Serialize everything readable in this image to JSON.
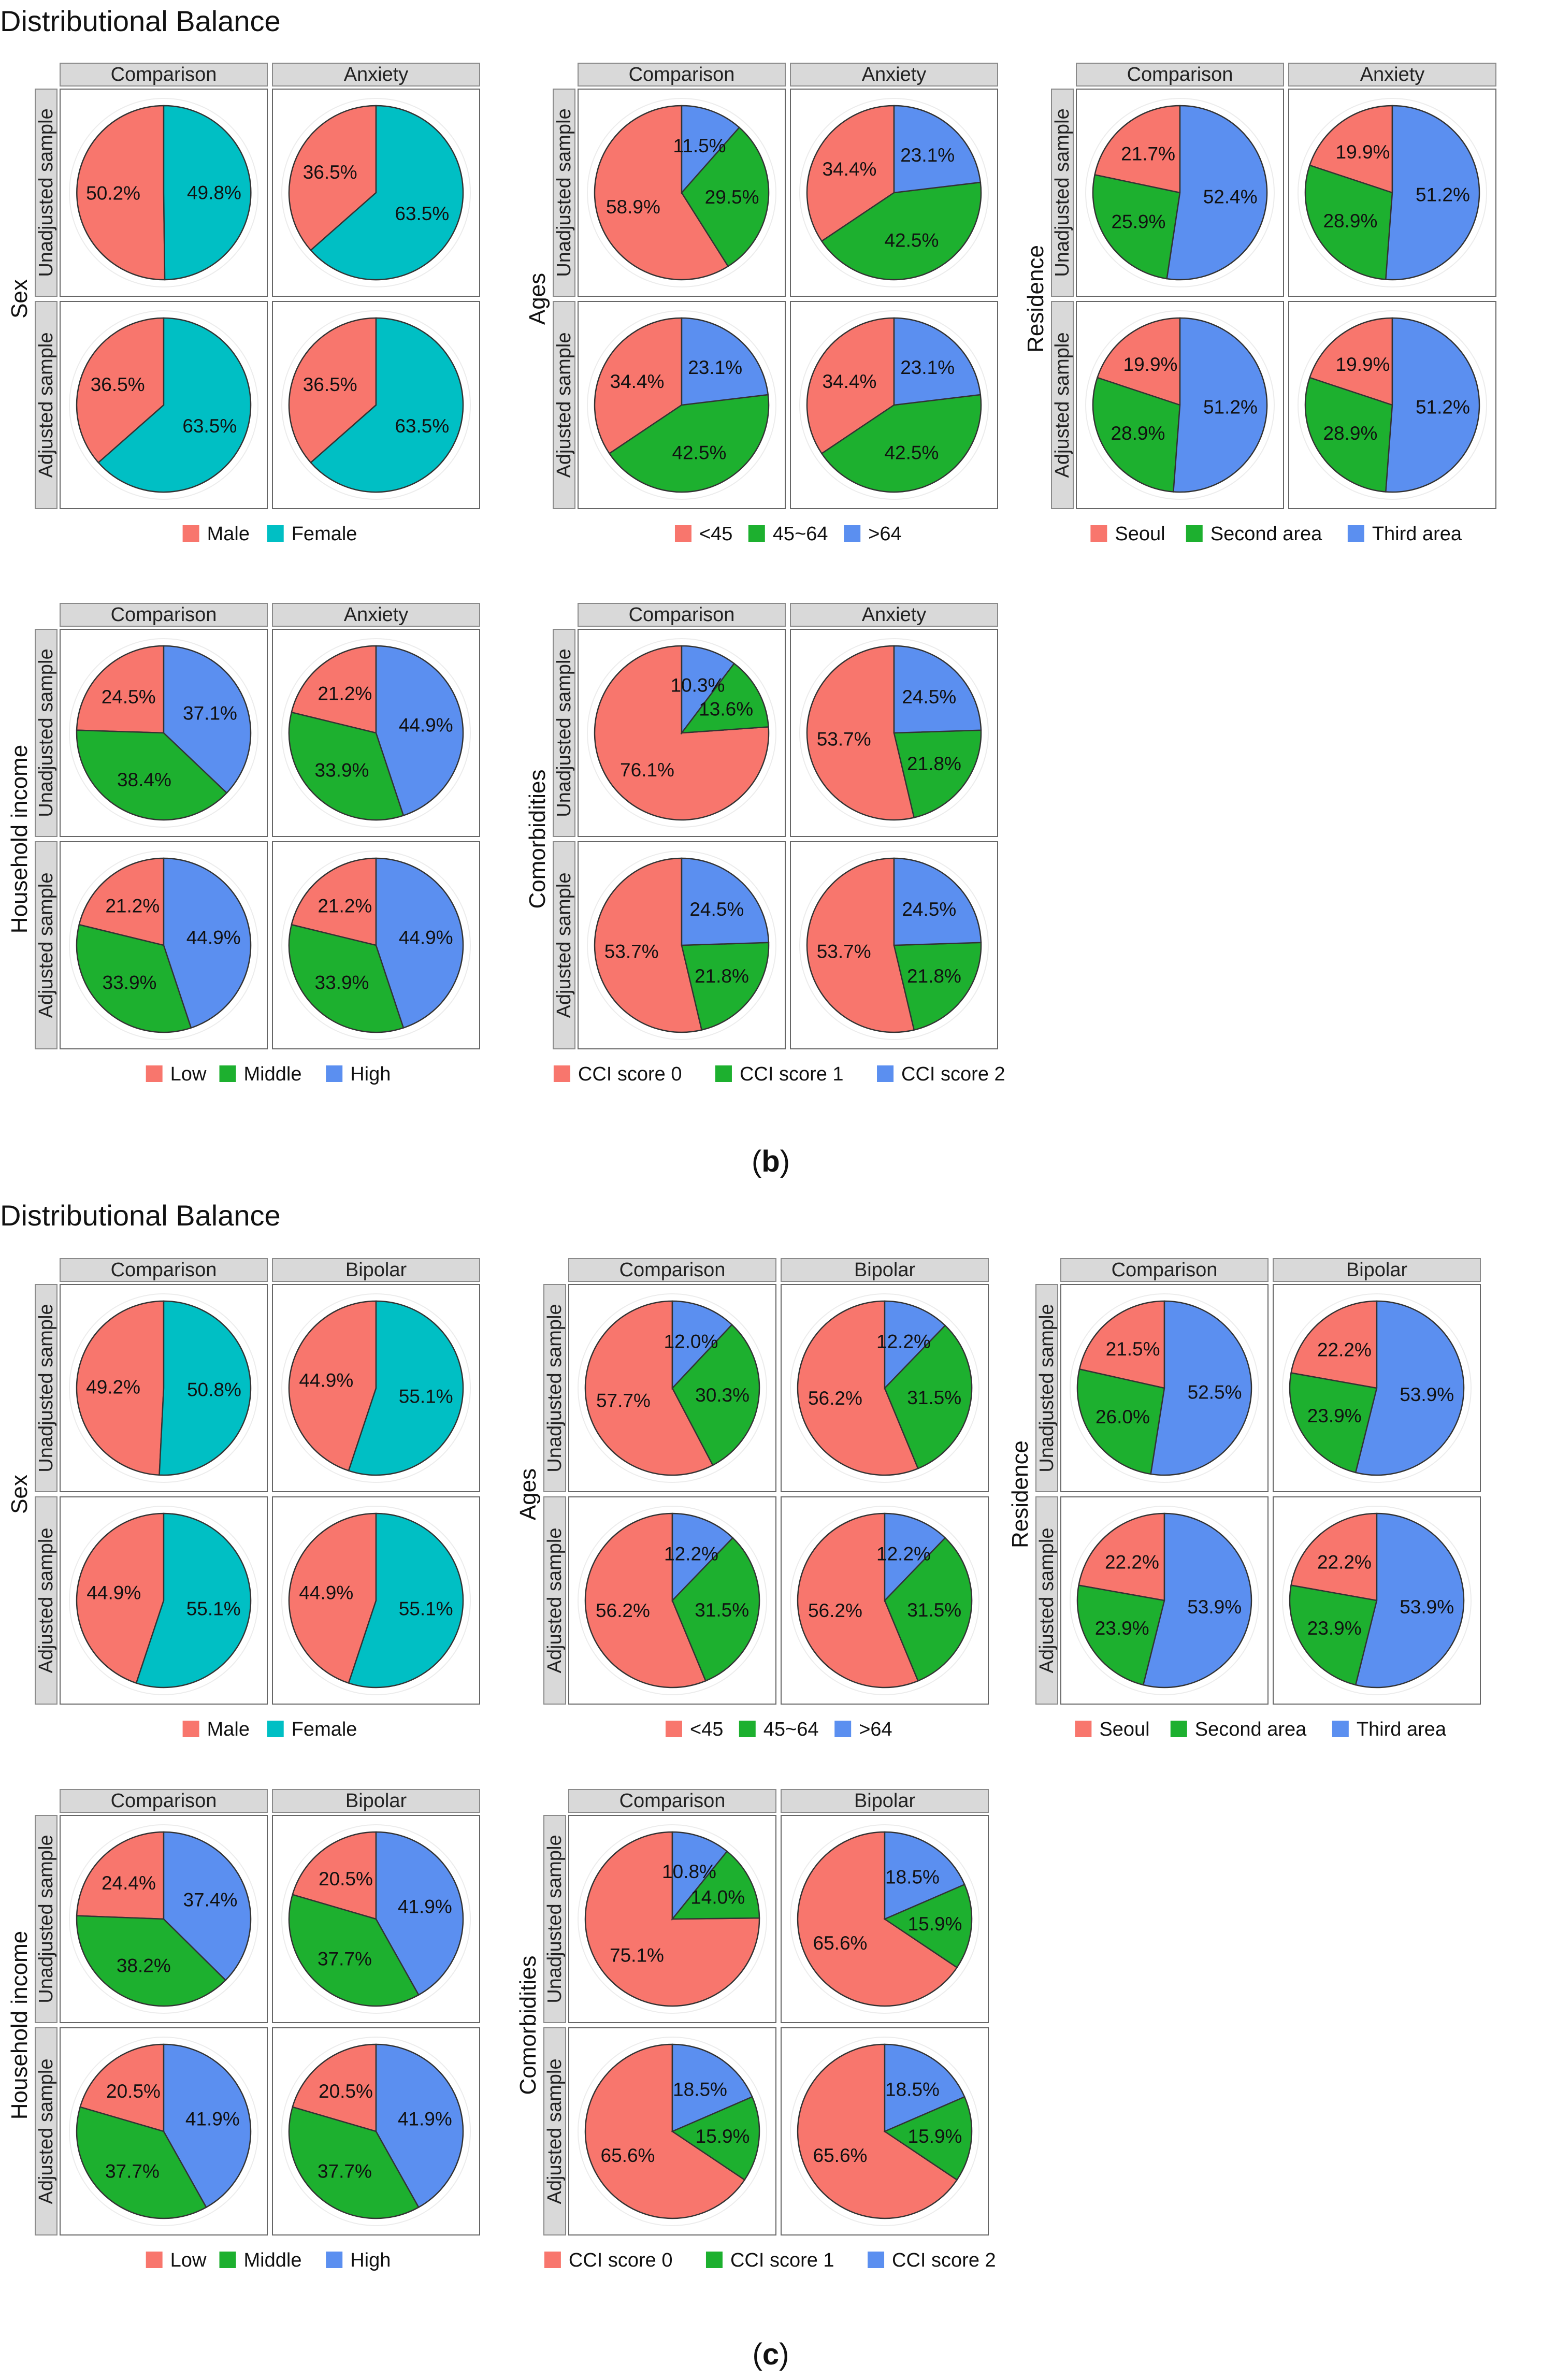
{
  "colors": {
    "red": "#F8766D",
    "green": "#1DB02F",
    "blue": "#5B8FF0",
    "teal": "#00BFC4",
    "strip_bg": "#D9D9D9",
    "strip_border": "#8A8A8A",
    "panel_border": "#666666",
    "outline": "#333333"
  },
  "figure": {
    "b": {
      "title": "Distributional Balance",
      "caption_open": "(",
      "caption_letter": "b",
      "caption_close": ")"
    },
    "c": {
      "title": "Distributional Balance",
      "caption_open": "(",
      "caption_letter": "c",
      "caption_close": ")"
    }
  },
  "chart_data": [
    {
      "type": "pie",
      "figure": "b",
      "variable": "Sex",
      "columns": [
        "Comparison",
        "Anxiety"
      ],
      "rows": [
        "Unadjusted sample",
        "Adjusted sample"
      ],
      "categories": [
        "Male",
        "Female"
      ],
      "colors": [
        "#F8766D",
        "#00BFC4"
      ],
      "values": [
        [
          [
            50.2,
            49.8
          ],
          [
            36.5,
            63.5
          ]
        ],
        [
          [
            36.5,
            63.5
          ],
          [
            36.5,
            63.5
          ]
        ]
      ]
    },
    {
      "type": "pie",
      "figure": "b",
      "variable": "Ages",
      "columns": [
        "Comparison",
        "Anxiety"
      ],
      "rows": [
        "Unadjusted sample",
        "Adjusted sample"
      ],
      "categories": [
        "<45",
        "45~64",
        ">64"
      ],
      "colors": [
        "#F8766D",
        "#1DB02F",
        "#5B8FF0"
      ],
      "values": [
        [
          [
            58.9,
            29.5,
            11.5
          ],
          [
            34.4,
            42.5,
            23.1
          ]
        ],
        [
          [
            34.4,
            42.5,
            23.1
          ],
          [
            34.4,
            42.5,
            23.1
          ]
        ]
      ]
    },
    {
      "type": "pie",
      "figure": "b",
      "variable": "Residence",
      "columns": [
        "Comparison",
        "Anxiety"
      ],
      "rows": [
        "Unadjusted sample",
        "Adjusted sample"
      ],
      "categories": [
        "Seoul",
        "Second area",
        "Third area"
      ],
      "colors": [
        "#F8766D",
        "#1DB02F",
        "#5B8FF0"
      ],
      "values": [
        [
          [
            21.7,
            25.9,
            52.4
          ],
          [
            19.9,
            28.9,
            51.2
          ]
        ],
        [
          [
            19.9,
            28.9,
            51.2
          ],
          [
            19.9,
            28.9,
            51.2
          ]
        ]
      ]
    },
    {
      "type": "pie",
      "figure": "b",
      "variable": "Household income",
      "columns": [
        "Comparison",
        "Anxiety"
      ],
      "rows": [
        "Unadjusted sample",
        "Adjusted sample"
      ],
      "categories": [
        "Low",
        "Middle",
        "High"
      ],
      "colors": [
        "#F8766D",
        "#1DB02F",
        "#5B8FF0"
      ],
      "values": [
        [
          [
            24.5,
            38.4,
            37.1
          ],
          [
            21.2,
            33.9,
            44.9
          ]
        ],
        [
          [
            21.2,
            33.9,
            44.9
          ],
          [
            21.2,
            33.9,
            44.9
          ]
        ]
      ]
    },
    {
      "type": "pie",
      "figure": "b",
      "variable": "Comorbidities",
      "columns": [
        "Comparison",
        "Anxiety"
      ],
      "rows": [
        "Unadjusted sample",
        "Adjusted sample"
      ],
      "categories": [
        "CCI score 0",
        "CCI score 1",
        "CCI score 2"
      ],
      "colors": [
        "#F8766D",
        "#1DB02F",
        "#5B8FF0"
      ],
      "values": [
        [
          [
            76.1,
            13.6,
            10.3
          ],
          [
            53.7,
            21.8,
            24.5
          ]
        ],
        [
          [
            53.7,
            21.8,
            24.5
          ],
          [
            53.7,
            21.8,
            24.5
          ]
        ]
      ]
    },
    {
      "type": "pie",
      "figure": "c",
      "variable": "Sex",
      "columns": [
        "Comparison",
        "Bipolar"
      ],
      "rows": [
        "Unadjusted sample",
        "Adjusted sample"
      ],
      "categories": [
        "Male",
        "Female"
      ],
      "colors": [
        "#F8766D",
        "#00BFC4"
      ],
      "values": [
        [
          [
            49.2,
            50.8
          ],
          [
            44.9,
            55.1
          ]
        ],
        [
          [
            44.9,
            55.1
          ],
          [
            44.9,
            55.1
          ]
        ]
      ]
    },
    {
      "type": "pie",
      "figure": "c",
      "variable": "Ages",
      "columns": [
        "Comparison",
        "Bipolar"
      ],
      "rows": [
        "Unadjusted sample",
        "Adjusted sample"
      ],
      "categories": [
        "<45",
        "45~64",
        ">64"
      ],
      "colors": [
        "#F8766D",
        "#1DB02F",
        "#5B8FF0"
      ],
      "values": [
        [
          [
            57.7,
            30.3,
            12.0
          ],
          [
            56.2,
            31.5,
            12.2
          ]
        ],
        [
          [
            56.2,
            31.5,
            12.2
          ],
          [
            56.2,
            31.5,
            12.2
          ]
        ]
      ]
    },
    {
      "type": "pie",
      "figure": "c",
      "variable": "Residence",
      "columns": [
        "Comparison",
        "Bipolar"
      ],
      "rows": [
        "Unadjusted sample",
        "Adjusted sample"
      ],
      "categories": [
        "Seoul",
        "Second area",
        "Third area"
      ],
      "colors": [
        "#F8766D",
        "#1DB02F",
        "#5B8FF0"
      ],
      "values": [
        [
          [
            21.5,
            26.0,
            52.5
          ],
          [
            22.2,
            23.9,
            53.9
          ]
        ],
        [
          [
            22.2,
            23.9,
            53.9
          ],
          [
            22.2,
            23.9,
            53.9
          ]
        ]
      ]
    },
    {
      "type": "pie",
      "figure": "c",
      "variable": "Household income",
      "columns": [
        "Comparison",
        "Bipolar"
      ],
      "rows": [
        "Unadjusted sample",
        "Adjusted sample"
      ],
      "categories": [
        "Low",
        "Middle",
        "High"
      ],
      "colors": [
        "#F8766D",
        "#1DB02F",
        "#5B8FF0"
      ],
      "values": [
        [
          [
            24.4,
            38.2,
            37.4
          ],
          [
            20.5,
            37.7,
            41.9
          ]
        ],
        [
          [
            20.5,
            37.7,
            41.9
          ],
          [
            20.5,
            37.7,
            41.9
          ]
        ]
      ]
    },
    {
      "type": "pie",
      "figure": "c",
      "variable": "Comorbidities",
      "columns": [
        "Comparison",
        "Bipolar"
      ],
      "rows": [
        "Unadjusted sample",
        "Adjusted sample"
      ],
      "categories": [
        "CCI score 0",
        "CCI score 1",
        "CCI score 2"
      ],
      "colors": [
        "#F8766D",
        "#1DB02F",
        "#5B8FF0"
      ],
      "values": [
        [
          [
            75.1,
            14.0,
            10.8
          ],
          [
            65.6,
            15.9,
            18.5
          ]
        ],
        [
          [
            65.6,
            15.9,
            18.5
          ],
          [
            65.6,
            15.9,
            18.5
          ]
        ]
      ]
    }
  ]
}
